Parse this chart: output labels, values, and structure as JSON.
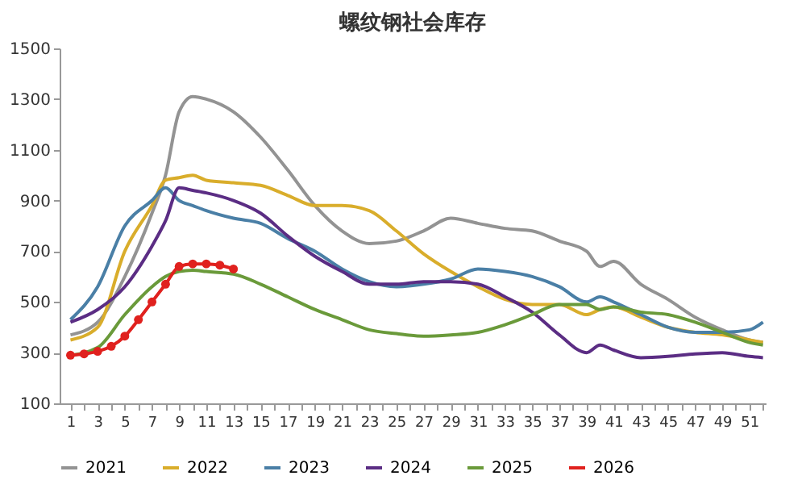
{
  "chart_data": {
    "type": "line",
    "title": "螺纹钢社会库存",
    "x": [
      1,
      3,
      5,
      7,
      8,
      9,
      10,
      11,
      13,
      15,
      17,
      19,
      21,
      23,
      25,
      27,
      29,
      31,
      33,
      35,
      37,
      39,
      40,
      41,
      43,
      45,
      47,
      49,
      51,
      52
    ],
    "xlim": [
      0.2,
      52.2
    ],
    "xticks": [
      1,
      {
        "value": 2,
        "label": null
      },
      3,
      {
        "value": 4,
        "label": null
      },
      5,
      {
        "value": 6,
        "label": null
      },
      7,
      {
        "value": 8,
        "label": null
      },
      9,
      {
        "value": 10,
        "label": null
      },
      11,
      {
        "value": 12,
        "label": null
      },
      13,
      {
        "value": 14,
        "label": null
      },
      15,
      {
        "value": 16,
        "label": null
      },
      17,
      {
        "value": 18,
        "label": null
      },
      19,
      {
        "value": 20,
        "label": null
      },
      21,
      {
        "value": 22,
        "label": null
      },
      23,
      {
        "value": 24,
        "label": null
      },
      25,
      {
        "value": 26,
        "label": null
      },
      27,
      {
        "value": 28,
        "label": null
      },
      29,
      {
        "value": 30,
        "label": null
      },
      31,
      {
        "value": 32,
        "label": null
      },
      33,
      {
        "value": 34,
        "label": null
      },
      35,
      {
        "value": 36,
        "label": null
      },
      37,
      {
        "value": 38,
        "label": null
      },
      39,
      {
        "value": 40,
        "label": null
      },
      41,
      {
        "value": 42,
        "label": null
      },
      43,
      {
        "value": 44,
        "label": null
      },
      45,
      {
        "value": 46,
        "label": null
      },
      47,
      {
        "value": 48,
        "label": null
      },
      49,
      {
        "value": 50,
        "label": null
      },
      51,
      {
        "value": 52,
        "label": null
      }
    ],
    "ylim": [
      100,
      1500
    ],
    "yticks": [
      100,
      300,
      500,
      700,
      900,
      1100,
      1300,
      1500
    ],
    "grid": false,
    "legend": "bottom",
    "line_style": "solid",
    "series": [
      {
        "name": "2021",
        "color": "#939393",
        "marker": "none",
        "values": [
          370,
          420,
          600,
          850,
          1000,
          1250,
          1310,
          1300,
          1250,
          1150,
          1020,
          880,
          780,
          730,
          740,
          780,
          830,
          810,
          790,
          780,
          740,
          700,
          640,
          660,
          570,
          510,
          440,
          390,
          350,
          340
        ]
      },
      {
        "name": "2022",
        "color": "#d9ad2b",
        "marker": "none",
        "values": [
          350,
          400,
          700,
          880,
          980,
          990,
          1000,
          980,
          970,
          960,
          920,
          880,
          880,
          860,
          780,
          690,
          620,
          560,
          510,
          490,
          490,
          450,
          470,
          480,
          440,
          400,
          380,
          370,
          350,
          340
        ]
      },
      {
        "name": "2023",
        "color": "#4a7fa6",
        "marker": "none",
        "values": [
          430,
          560,
          800,
          900,
          950,
          900,
          880,
          860,
          830,
          810,
          750,
          700,
          630,
          580,
          560,
          570,
          590,
          630,
          620,
          600,
          560,
          500,
          520,
          500,
          450,
          400,
          380,
          380,
          390,
          420
        ]
      },
      {
        "name": "2024",
        "color": "#5b2d84",
        "marker": "none",
        "values": [
          420,
          470,
          560,
          720,
          820,
          950,
          940,
          930,
          900,
          850,
          760,
          680,
          620,
          570,
          570,
          580,
          580,
          570,
          520,
          460,
          370,
          300,
          330,
          310,
          280,
          285,
          295,
          300,
          285,
          280
        ]
      },
      {
        "name": "2025",
        "color": "#6a9a3a",
        "marker": "none",
        "values": [
          290,
          320,
          450,
          560,
          600,
          620,
          625,
          620,
          610,
          570,
          520,
          470,
          430,
          390,
          375,
          365,
          370,
          380,
          410,
          450,
          490,
          490,
          470,
          480,
          460,
          450,
          420,
          380,
          340,
          330
        ]
      },
      {
        "name": "2026",
        "color": "#e0211e",
        "marker": "circle",
        "x": [
          1,
          2,
          3,
          4,
          5,
          6,
          7,
          8,
          9,
          10,
          11,
          12,
          13
        ],
        "values": [
          290,
          295,
          305,
          325,
          365,
          430,
          500,
          570,
          640,
          650,
          650,
          645,
          630
        ]
      }
    ]
  }
}
